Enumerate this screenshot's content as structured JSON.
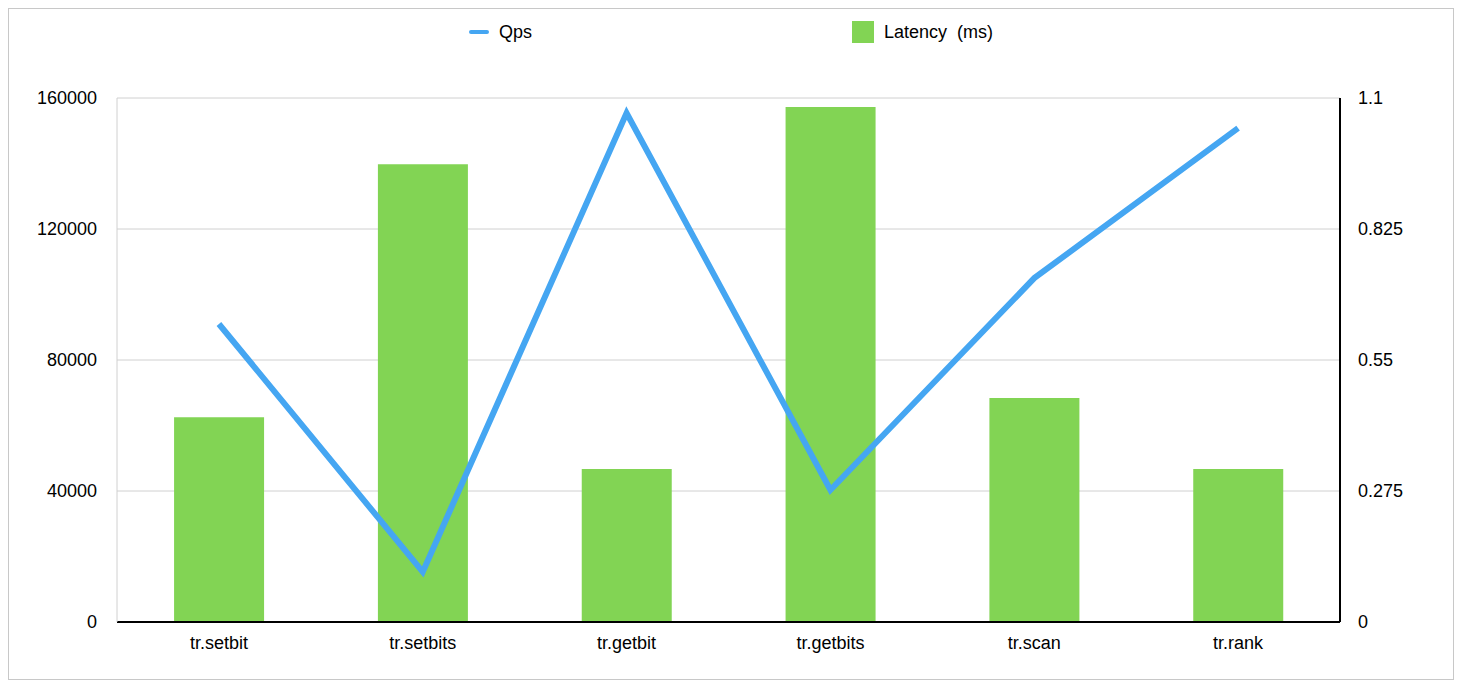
{
  "chart_data": {
    "type": "bar",
    "categories": [
      "tr.setbit",
      "tr.setbits",
      "tr.getbit",
      "tr.getbits",
      "tr.scan",
      "tr.rank"
    ],
    "series": [
      {
        "name": "Qps",
        "type": "line",
        "color": "#45a6f2",
        "values": [
          91000,
          15300,
          155400,
          40300,
          105000,
          150800
        ]
      },
      {
        "name": "Latency  (ms)",
        "type": "bar",
        "color": "#82d454",
        "axis": "y2",
        "values": [
          0.43,
          0.961,
          0.321,
          1.081,
          0.47,
          0.321
        ]
      }
    ],
    "ylim": [
      0,
      160000
    ],
    "yticks": [
      0,
      40000,
      80000,
      120000,
      160000
    ],
    "y2lim": [
      0,
      1.1
    ],
    "y2ticks": [
      0,
      0.275,
      0.55,
      0.825,
      1.1
    ],
    "grid": true,
    "legend": "top"
  }
}
